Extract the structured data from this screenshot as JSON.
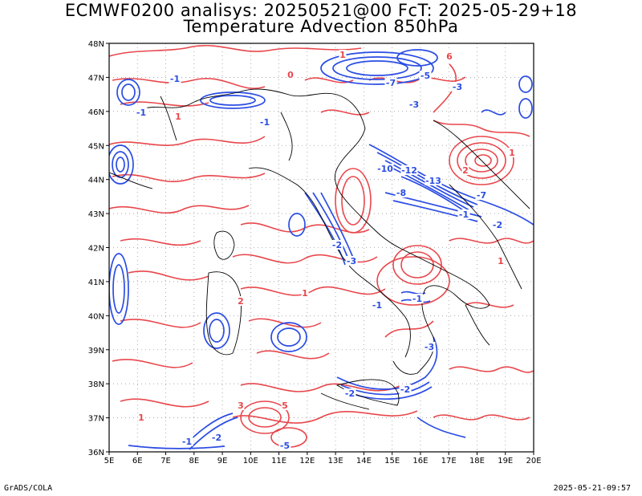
{
  "header": {
    "title_line1": "ECMWF0200 analisys: 20250521@00 FcT: 2025-05-29+18",
    "title_line2": "Temperature Advection 850hPa"
  },
  "footer": {
    "left": "GrADS/COLA",
    "right": "2025-05-21-09:57"
  },
  "map": {
    "lon_range": [
      5,
      20
    ],
    "lat_range": [
      36,
      48
    ],
    "lon_labels": [
      "5E",
      "6E",
      "7E",
      "8E",
      "9E",
      "10E",
      "11E",
      "12E",
      "13E",
      "14E",
      "15E",
      "16E",
      "17E",
      "18E",
      "19E",
      "20E"
    ],
    "lat_labels": [
      "48N",
      "47N",
      "46N",
      "45N",
      "44N",
      "43N",
      "42N",
      "41N",
      "40N",
      "39N",
      "38N",
      "37N",
      "36N"
    ],
    "colors": {
      "warm_advection": "#e8474c",
      "cold_advection": "#2b4de3",
      "coastline": "#000000",
      "grid": "#9a9a9a"
    },
    "contour_labels_visible": [
      "1",
      "2",
      "3",
      "-1",
      "-2",
      "-3",
      "-5",
      "-7",
      "-8",
      "-10",
      "-12",
      "-13",
      "0",
      "5",
      "6"
    ]
  }
}
